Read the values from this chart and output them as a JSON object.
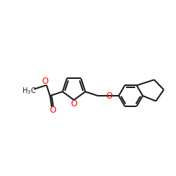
{
  "bg_color": "#ffffff",
  "bond_color": "#1a1a1a",
  "oxygen_color": "#ff0000",
  "line_width": 1.5,
  "figsize": [
    2.5,
    2.5
  ],
  "dpi": 100,
  "xlim": [
    0,
    10
  ],
  "ylim": [
    2,
    8
  ]
}
